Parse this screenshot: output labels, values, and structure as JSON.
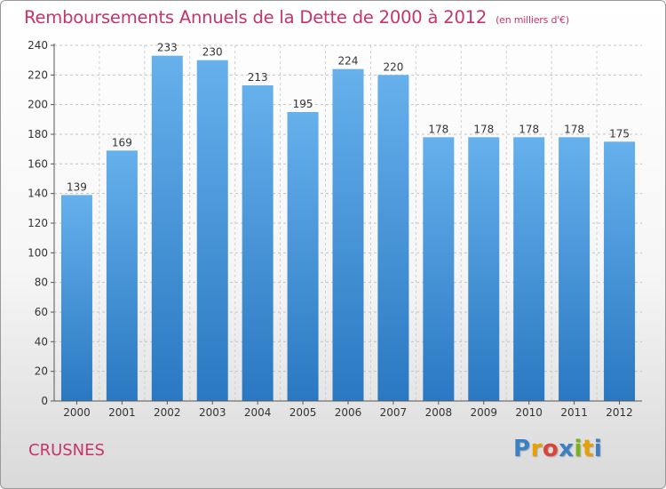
{
  "header": {
    "title": "Remboursements Annuels de la Dette de 2000 à 2012",
    "unit": "(en milliers d'€)"
  },
  "footer": {
    "commune": "CRUSNES",
    "logo": {
      "letters": [
        "P",
        "r",
        "o",
        "x",
        "i",
        "t",
        "i"
      ],
      "colors": [
        "#3b7fc4",
        "#e8a000",
        "#d8453a",
        "#3b7fc4",
        "#7ab317",
        "#e8a000",
        "#3b7fc4"
      ]
    }
  },
  "chart_data": {
    "type": "bar",
    "title": "Remboursements Annuels de la Dette de 2000 à 2012",
    "categories": [
      "2000",
      "2001",
      "2002",
      "2003",
      "2004",
      "2005",
      "2006",
      "2007",
      "2008",
      "2009",
      "2010",
      "2011",
      "2012"
    ],
    "values": [
      139,
      169,
      233,
      230,
      213,
      195,
      224,
      220,
      178,
      178,
      178,
      178,
      175
    ],
    "ylim": [
      0,
      240
    ],
    "yticks": [
      0,
      20,
      40,
      60,
      80,
      100,
      120,
      140,
      160,
      180,
      200,
      220,
      240
    ],
    "grid": true,
    "bar_color_light": "#66b0ec",
    "bar_color_dark": "#2a78c2"
  }
}
